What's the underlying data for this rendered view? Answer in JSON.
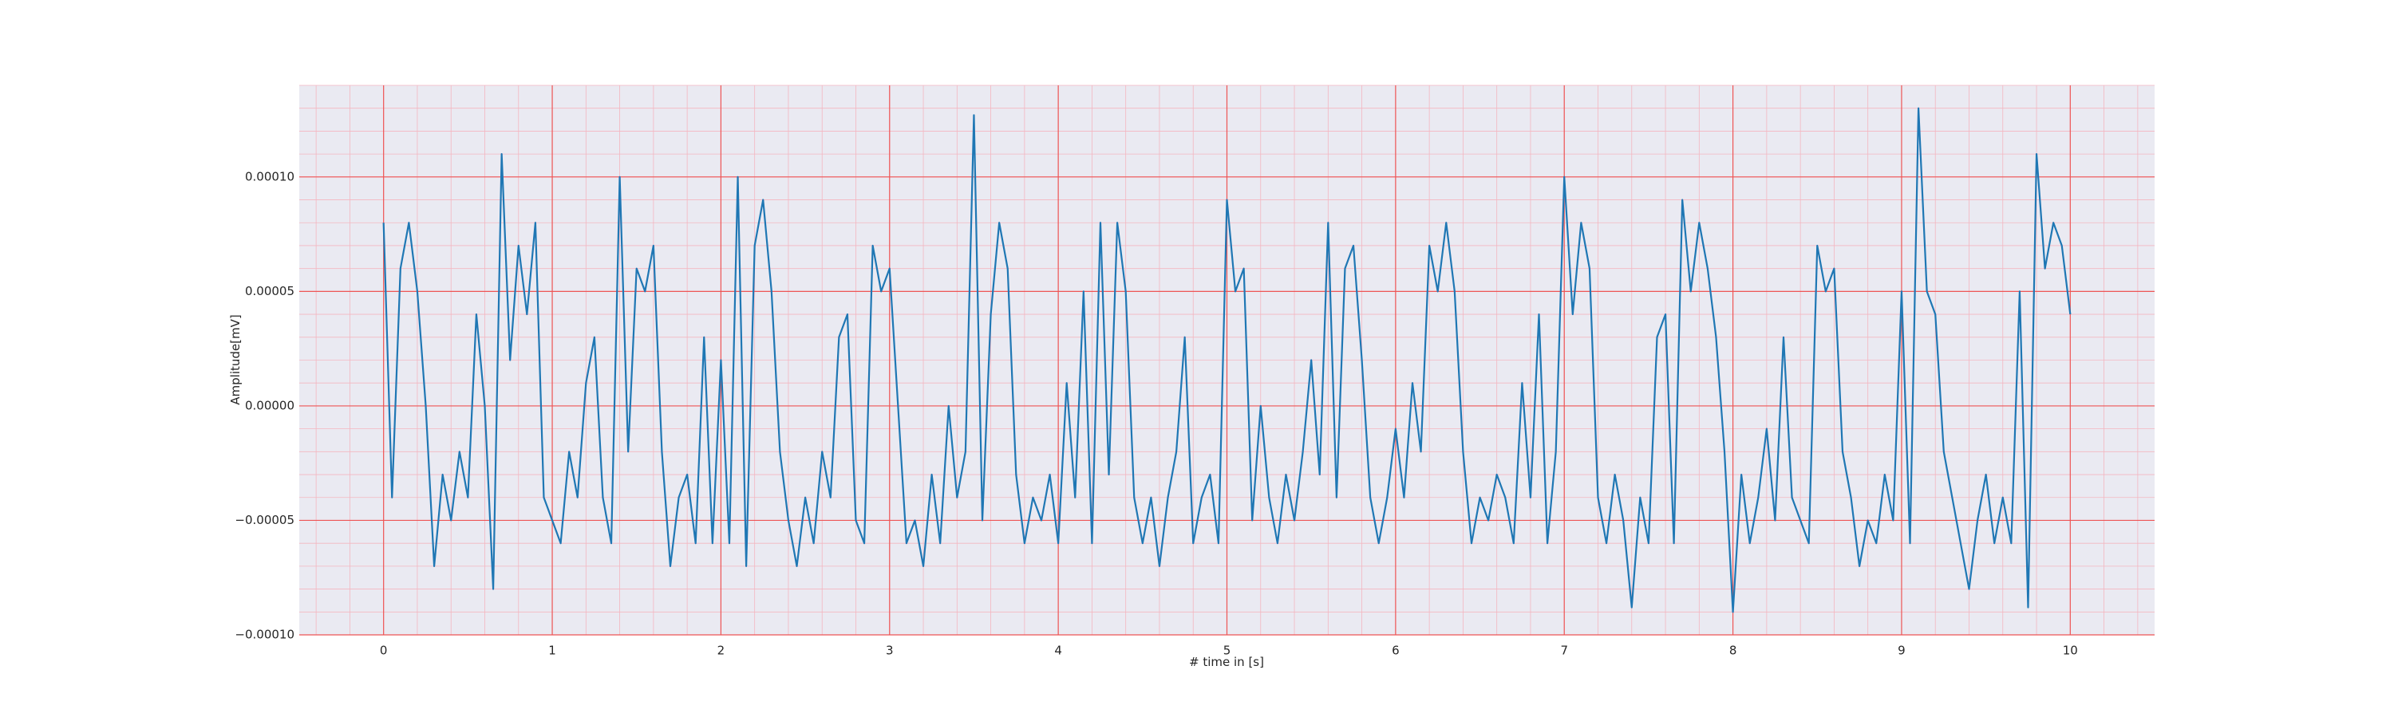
{
  "chart_data": {
    "type": "line",
    "xlabel": "# time in [s]",
    "ylabel": "Amplitude[mV]",
    "color": "#1f77b4",
    "grid": true,
    "minor_grid": true,
    "xlim": [
      -0.5,
      10.5
    ],
    "xticks": [
      0,
      1,
      2,
      3,
      4,
      5,
      6,
      7,
      8,
      9,
      10
    ],
    "ylim": [
      -0.0001,
      0.00014
    ],
    "yticks": [
      {
        "value": -0.0001,
        "label": "−0.00010"
      },
      {
        "value": -5e-05,
        "label": "−0.00005"
      },
      {
        "value": 0,
        "label": "0.00000"
      },
      {
        "value": 5e-05,
        "label": "0.00005"
      },
      {
        "value": 0.0001,
        "label": "0.00010"
      }
    ],
    "x": [
      0,
      0.05,
      0.1,
      0.15,
      0.2,
      0.25,
      0.3,
      0.35,
      0.4,
      0.45,
      0.5,
      0.55,
      0.6,
      0.65,
      0.7,
      0.75,
      0.8,
      0.85,
      0.9,
      0.95,
      1,
      1.05,
      1.1,
      1.15,
      1.2,
      1.25,
      1.3,
      1.35,
      1.4,
      1.45,
      1.5,
      1.55,
      1.6,
      1.65,
      1.7,
      1.75,
      1.8,
      1.85,
      1.9,
      1.95,
      2,
      2.05,
      2.1,
      2.15,
      2.2,
      2.25,
      2.3,
      2.35,
      2.4,
      2.45,
      2.5,
      2.55,
      2.6,
      2.65,
      2.7,
      2.75,
      2.8,
      2.85,
      2.9,
      2.95,
      3,
      3.05,
      3.1,
      3.15,
      3.2,
      3.25,
      3.3,
      3.35,
      3.4,
      3.45,
      3.5,
      3.55,
      3.6,
      3.65,
      3.7,
      3.75,
      3.8,
      3.85,
      3.9,
      3.95,
      4,
      4.05,
      4.1,
      4.15,
      4.2,
      4.25,
      4.3,
      4.35,
      4.4,
      4.45,
      4.5,
      4.55,
      4.6,
      4.65,
      4.7,
      4.75,
      4.8,
      4.85,
      4.9,
      4.95,
      5,
      5.05,
      5.1,
      5.15,
      5.2,
      5.25,
      5.3,
      5.35,
      5.4,
      5.45,
      5.5,
      5.55,
      5.6,
      5.65,
      5.7,
      5.75,
      5.8,
      5.85,
      5.9,
      5.95,
      6,
      6.05,
      6.1,
      6.15,
      6.2,
      6.25,
      6.3,
      6.35,
      6.4,
      6.45,
      6.5,
      6.55,
      6.6,
      6.65,
      6.7,
      6.75,
      6.8,
      6.85,
      6.9,
      6.95,
      7,
      7.05,
      7.1,
      7.15,
      7.2,
      7.25,
      7.3,
      7.35,
      7.4,
      7.45,
      7.5,
      7.55,
      7.6,
      7.65,
      7.7,
      7.75,
      7.8,
      7.85,
      7.9,
      7.95,
      8,
      8.05,
      8.1,
      8.15,
      8.2,
      8.25,
      8.3,
      8.35,
      8.4,
      8.45,
      8.5,
      8.55,
      8.6,
      8.65,
      8.7,
      8.75,
      8.8,
      8.85,
      8.9,
      8.95,
      9,
      9.05,
      9.1,
      9.15,
      9.2,
      9.25,
      9.3,
      9.35,
      9.4,
      9.45,
      9.5,
      9.55,
      9.6,
      9.65,
      9.7,
      9.75,
      9.8,
      9.85,
      9.9,
      9.95,
      10
    ],
    "values": [
      8e-05,
      -4e-05,
      6e-05,
      8e-05,
      5e-05,
      0,
      -7e-05,
      -3e-05,
      -5e-05,
      -2e-05,
      -4e-05,
      4e-05,
      0,
      -8e-05,
      0.00011,
      2e-05,
      7e-05,
      4e-05,
      8e-05,
      -4e-05,
      -5e-05,
      -6e-05,
      -2e-05,
      -4e-05,
      1e-05,
      3e-05,
      -4e-05,
      -6e-05,
      0.0001,
      -2e-05,
      6e-05,
      5e-05,
      7e-05,
      -2e-05,
      -7e-05,
      -4e-05,
      -3e-05,
      -6e-05,
      3e-05,
      -6e-05,
      2e-05,
      -6e-05,
      0.0001,
      -7e-05,
      7e-05,
      9e-05,
      5e-05,
      -2e-05,
      -5e-05,
      -7e-05,
      -4e-05,
      -6e-05,
      -2e-05,
      -4e-05,
      3e-05,
      4e-05,
      -5e-05,
      -6e-05,
      7e-05,
      5e-05,
      6e-05,
      0,
      -6e-05,
      -5e-05,
      -7e-05,
      -3e-05,
      -6e-05,
      0,
      -4e-05,
      -2e-05,
      0.000127,
      -5e-05,
      4e-05,
      8e-05,
      6e-05,
      -3e-05,
      -6e-05,
      -4e-05,
      -5e-05,
      -3e-05,
      -6e-05,
      1e-05,
      -4e-05,
      5e-05,
      -6e-05,
      8e-05,
      -3e-05,
      8e-05,
      5e-05,
      -4e-05,
      -6e-05,
      -4e-05,
      -7e-05,
      -4e-05,
      -2e-05,
      3e-05,
      -6e-05,
      -4e-05,
      -3e-05,
      -6e-05,
      9e-05,
      5e-05,
      6e-05,
      -5e-05,
      0,
      -4e-05,
      -6e-05,
      -3e-05,
      -5e-05,
      -2e-05,
      2e-05,
      -3e-05,
      8e-05,
      -4e-05,
      6e-05,
      7e-05,
      2e-05,
      -4e-05,
      -6e-05,
      -4e-05,
      -1e-05,
      -4e-05,
      1e-05,
      -2e-05,
      7e-05,
      5e-05,
      8e-05,
      5e-05,
      -2e-05,
      -6e-05,
      -4e-05,
      -5e-05,
      -3e-05,
      -4e-05,
      -6e-05,
      1e-05,
      -4e-05,
      4e-05,
      -6e-05,
      -2e-05,
      0.0001,
      4e-05,
      8e-05,
      6e-05,
      -4e-05,
      -6e-05,
      -3e-05,
      -5e-05,
      -8.8e-05,
      -4e-05,
      -6e-05,
      3e-05,
      4e-05,
      -6e-05,
      9e-05,
      5e-05,
      8e-05,
      6e-05,
      3e-05,
      -2e-05,
      -9e-05,
      -3e-05,
      -6e-05,
      -4e-05,
      -1e-05,
      -5e-05,
      3e-05,
      -4e-05,
      -5e-05,
      -6e-05,
      7e-05,
      5e-05,
      6e-05,
      -2e-05,
      -4e-05,
      -7e-05,
      -5e-05,
      -6e-05,
      -3e-05,
      -5e-05,
      5e-05,
      -6e-05,
      0.00013,
      5e-05,
      4e-05,
      -2e-05,
      -4e-05,
      -6e-05,
      -8e-05,
      -5e-05,
      -3e-05,
      -6e-05,
      -4e-05,
      -6e-05,
      5e-05,
      -8.8e-05,
      0.00011,
      6e-05,
      8e-05,
      7e-05,
      4e-05
    ]
  }
}
